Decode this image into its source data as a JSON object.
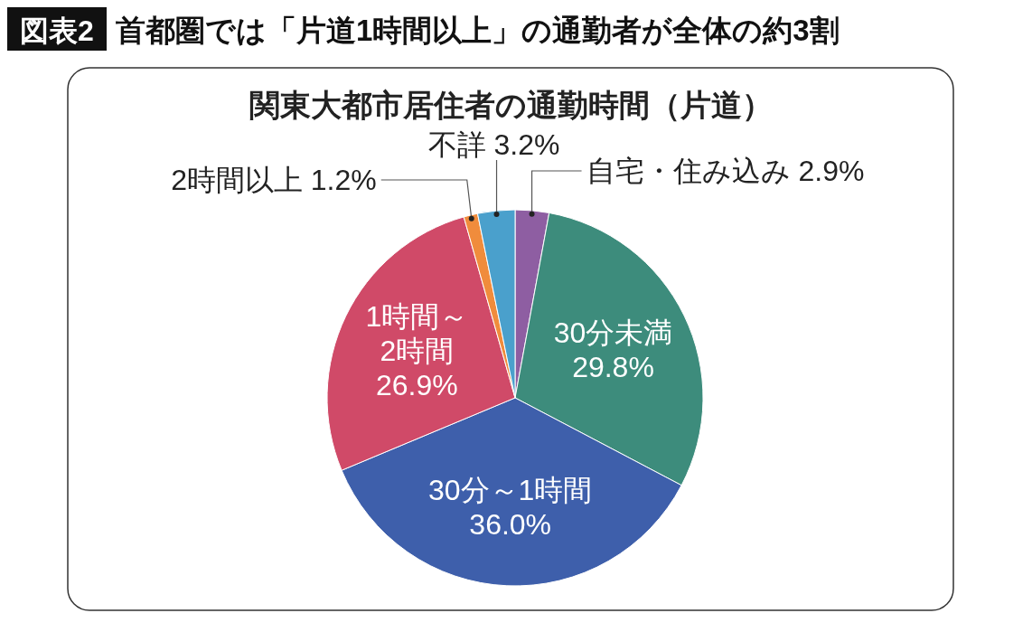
{
  "chart_data": {
    "type": "pie",
    "title": "首都圏では「片道1時間以上」の通勤者が全体の約3割",
    "subtitle": "関東大都市居住者の通勤時間（片道）",
    "annotations": [
      "図表2"
    ],
    "categories": [
      "自宅・住み込み",
      "30分未満",
      "30分～1時間",
      "1時間～\n2時間",
      "2時間以上",
      "不詳"
    ],
    "values": [
      2.9,
      29.8,
      36.0,
      26.9,
      1.2,
      3.2
    ],
    "colors": [
      "#8e5ea2",
      "#3d8c7c",
      "#3e5fab",
      "#d04a68",
      "#f08c3c",
      "#4aa0cc"
    ],
    "value_labels": [
      "2.9%",
      "29.8%",
      "36.0%",
      "26.9%",
      "1.2%",
      "3.2%"
    ]
  }
}
